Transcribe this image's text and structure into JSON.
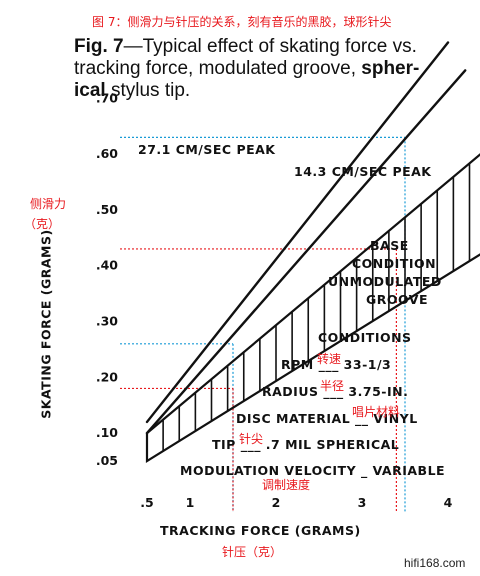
{
  "annotations": {
    "cn_title": "图 7：侧滑力与针压的关系，刻有音乐的黑胶，球形针尖",
    "cn_yaxis_line1": "侧滑力",
    "cn_yaxis_line2": "（克）",
    "cn_xaxis": "针压（克）",
    "cn_rpm": "转速",
    "cn_radius": "半径",
    "cn_disc_material": "唱片材料",
    "cn_tip": "针尖",
    "cn_modulation": "调制速度",
    "watermark": "hifi168.com"
  },
  "caption": {
    "line1_bold": "Fig. 7",
    "line1_rest": "—Typical effect of skating force vs.",
    "line2_rest": "tracking force, modulated groove, ",
    "line2_bold": "spher-",
    "line3_bold": "ical",
    "line3_rest": " stylus tip."
  },
  "labels": {
    "series_27": "27.1 CM/SEC PEAK",
    "series_14": "14.3 CM/SEC PEAK",
    "base1": "BASE",
    "base2": "CONDITION",
    "base3": "UNMODULATED",
    "base4": "GROOVE",
    "conditions_title": "CONDITIONS",
    "rpm": "RPM ___ 33-1/3",
    "radius": "RADIUS ___ 3.75-IN.",
    "disc": "DISC MATERIAL __ VINYL",
    "tip": "TIP ___ .7 MIL SPHERICAL",
    "modulation": "MODULATION VELOCITY _ VARIABLE"
  },
  "chart_data": {
    "type": "line",
    "xlabel": "TRACKING FORCE (GRAMS)",
    "ylabel": "SKATING FORCE (GRAMS)",
    "xlim": [
      0.5,
      5
    ],
    "ylim": [
      0.05,
      0.7
    ],
    "xticks": [
      ".5",
      "1",
      "2",
      "3",
      "4"
    ],
    "xtick_values": [
      0.5,
      1,
      2,
      3,
      4
    ],
    "yticks": [
      ".05",
      ".10",
      ".20",
      ".30",
      ".40",
      ".50",
      ".60",
      ".70"
    ],
    "ytick_values": [
      0.05,
      0.1,
      0.2,
      0.3,
      0.4,
      0.5,
      0.6,
      0.7
    ],
    "series": [
      {
        "name": "27.1 CM/SEC PEAK",
        "x": [
          0.5,
          4.0
        ],
        "y": [
          0.12,
          0.8
        ]
      },
      {
        "name": "14.3 CM/SEC PEAK",
        "x": [
          0.5,
          4.2
        ],
        "y": [
          0.1,
          0.75
        ]
      }
    ],
    "band": {
      "name": "BASE CONDITION UNMODULATED GROOVE",
      "x": [
        0.5,
        5.0
      ],
      "upper": [
        0.1,
        0.68
      ],
      "lower": [
        0.05,
        0.48
      ]
    },
    "reference_lines": [
      {
        "color": "#1a9bd6",
        "x": 3.5,
        "y": 0.63
      },
      {
        "color": "#e8191e",
        "x": 3.4,
        "y": 0.43
      },
      {
        "color": "#1a9bd6",
        "x": 1.5,
        "y": 0.26
      },
      {
        "color": "#e8191e",
        "x": 1.5,
        "y": 0.18
      }
    ]
  }
}
